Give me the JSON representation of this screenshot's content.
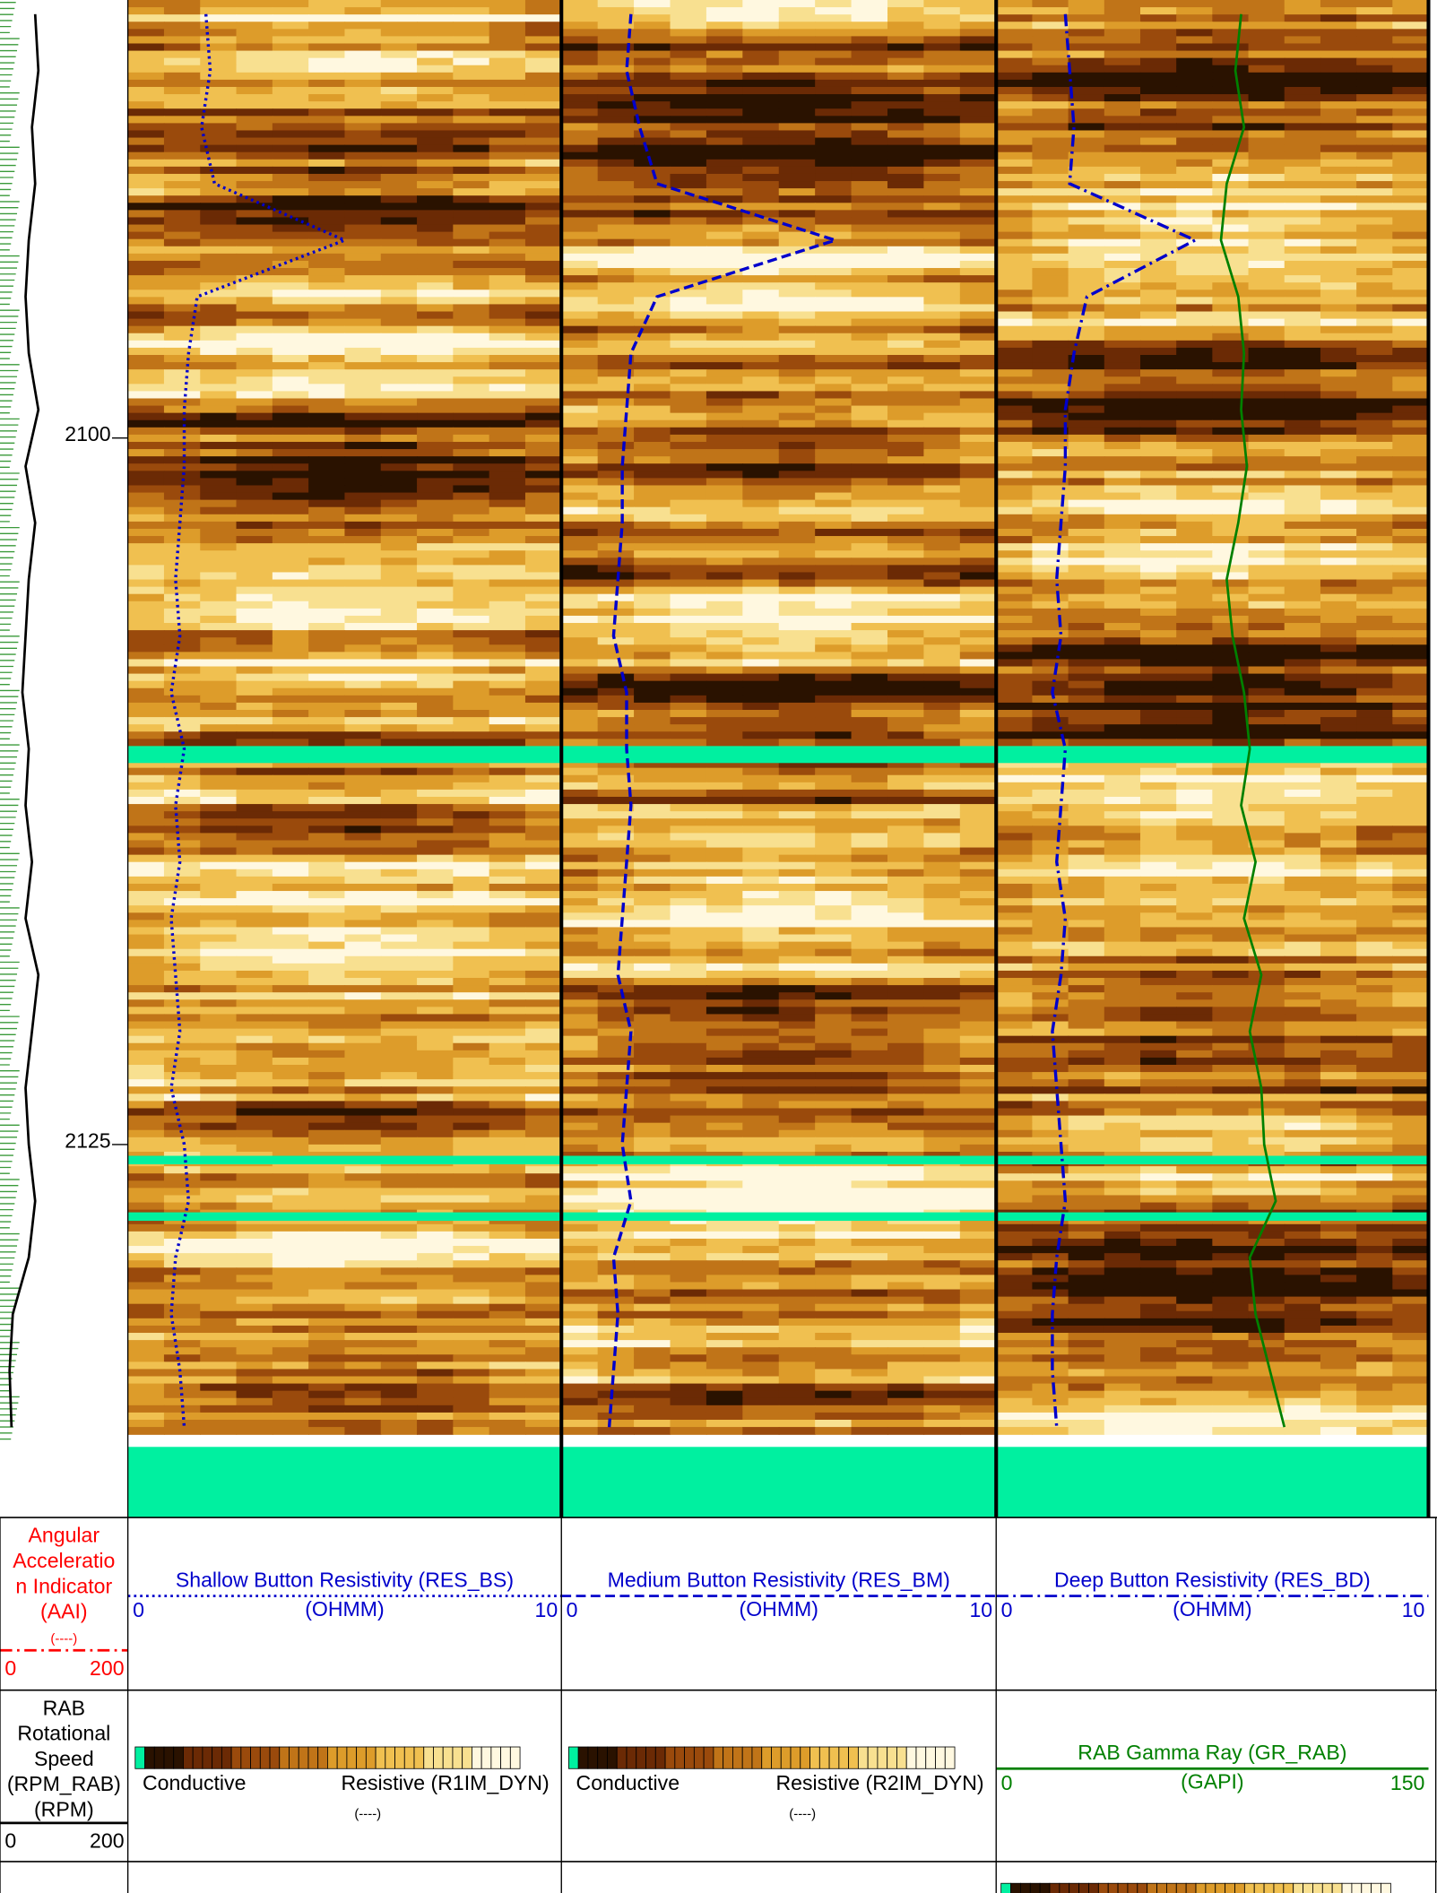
{
  "chart_data": {
    "type": "well-log",
    "ylim": [
      2084.5,
      2138.2
    ],
    "yticks": [
      2100,
      2125
    ],
    "depth": [
      2085,
      2087,
      2089,
      2091,
      2093,
      2095,
      2097,
      2099,
      2101,
      2103,
      2105,
      2107,
      2109,
      2111,
      2113,
      2115,
      2117,
      2119,
      2121,
      2123,
      2125,
      2127,
      2129,
      2131,
      2133,
      2135
    ],
    "gaps": [
      [
        2110.9,
        2111.5
      ],
      [
        2125.4,
        2125.7
      ],
      [
        2127.4,
        2127.7
      ],
      [
        2135.7,
        2138.2
      ]
    ],
    "tracks": [
      {
        "curves": [
          {
            "title_lines": [
              "Angular",
              "Acceleratio",
              "n Indicator",
              "(AAI)"
            ],
            "unit": "(----)",
            "color": "#ff0000",
            "style": "dashdot",
            "xlim": [
              0,
              200
            ]
          },
          {
            "title_lines": [
              "RAB",
              "Rotational",
              "Speed",
              "(RPM_RAB)",
              "(RPM)"
            ],
            "color": "#000000",
            "style": "solid",
            "xlim": [
              0,
              200
            ],
            "values": [
              55,
              60,
              50,
              55,
              45,
              40,
              45,
              60,
              40,
              55,
              45,
              40,
              35,
              45,
              40,
              50,
              40,
              60,
              50,
              40,
              45,
              55,
              45,
              20,
              15,
              18
            ]
          }
        ]
      },
      {
        "curves": [
          {
            "title": "Shallow Button Resistivity (RES_BS)",
            "unit": "(OHMM)",
            "color": "#0000cc",
            "style": "dotted",
            "xlim": [
              0,
              10
            ],
            "values": [
              1.8,
              1.9,
              1.7,
              2.0,
              5.0,
              1.6,
              1.4,
              1.3,
              1.3,
              1.2,
              1.1,
              1.2,
              1.0,
              1.3,
              1.1,
              1.2,
              1.0,
              1.1,
              1.2,
              1.0,
              1.3,
              1.4,
              1.1,
              1.0,
              1.2,
              1.3
            ]
          }
        ],
        "image": {
          "low": "Conductive",
          "high": "Resistive (R1IM_DYN)",
          "unit": "(----)"
        }
      },
      {
        "curves": [
          {
            "title": "Medium Button Resistivity (RES_BM)",
            "unit": "(OHMM)",
            "color": "#0000cc",
            "style": "dashed",
            "xlim": [
              0,
              10
            ],
            "values": [
              1.6,
              1.5,
              1.8,
              2.2,
              6.3,
              2.2,
              1.6,
              1.5,
              1.4,
              1.4,
              1.3,
              1.2,
              1.5,
              1.5,
              1.6,
              1.5,
              1.4,
              1.3,
              1.6,
              1.5,
              1.4,
              1.6,
              1.2,
              1.3,
              1.2,
              1.1
            ]
          }
        ],
        "image": {
          "low": "Conductive",
          "high": "Resistive (R2IM_DYN)",
          "unit": "(----)"
        }
      },
      {
        "curves": [
          {
            "title": "Deep Button Resistivity (RES_BD)",
            "unit": "(OHMM)",
            "color": "#0000cc",
            "style": "dashdot",
            "xlim": [
              0,
              10
            ],
            "values": [
              1.6,
              1.7,
              1.8,
              1.7,
              4.6,
              2.1,
              1.8,
              1.6,
              1.6,
              1.5,
              1.4,
              1.5,
              1.3,
              1.6,
              1.5,
              1.4,
              1.6,
              1.5,
              1.3,
              1.4,
              1.5,
              1.6,
              1.4,
              1.3,
              1.3,
              1.4
            ]
          },
          {
            "title": "RAB Gamma Ray (GR_RAB)",
            "unit": "(GAPI)",
            "color": "#008000",
            "style": "solid",
            "xlim": [
              0,
              150
            ],
            "values": [
              85,
              83,
              86,
              80,
              78,
              84,
              86,
              85,
              87,
              84,
              80,
              82,
              86,
              88,
              85,
              90,
              86,
              92,
              88,
              92,
              93,
              97,
              88,
              90,
              95,
              100
            ]
          }
        ]
      }
    ]
  }
}
